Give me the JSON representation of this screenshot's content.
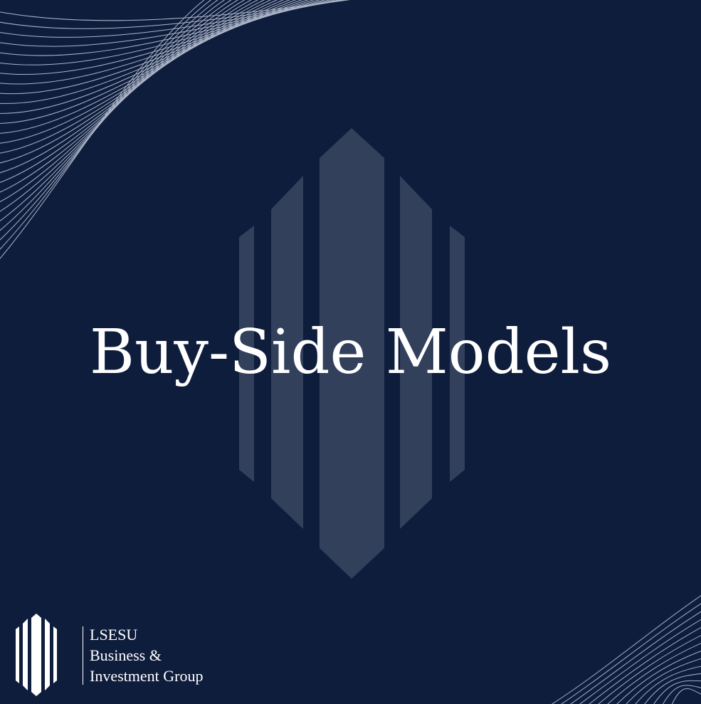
{
  "title": "Buy-Side Models",
  "brand": {
    "line1": "LSESU",
    "line2": "Business &",
    "line3": "Investment Group"
  },
  "colors": {
    "background": "#0f1d3d",
    "emblem": "#33405c",
    "text": "#ffffff",
    "lines": "#c8d0e0"
  },
  "icons": {
    "emblem": "building-pillars-icon",
    "logo": "building-pillars-icon"
  }
}
